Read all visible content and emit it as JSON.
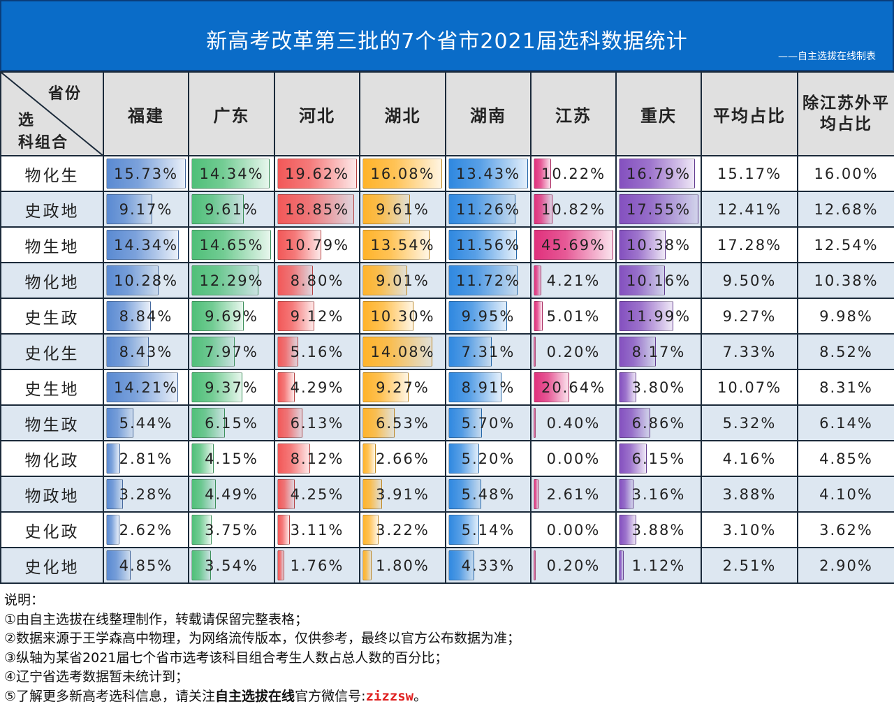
{
  "title": "新高考改革第三批的7个省市2021届选科数据统计",
  "subtitle": "——自主选拔在线制表",
  "corner": {
    "top": "省份",
    "mid": "选",
    "bottom": "科组合"
  },
  "chart_data": {
    "type": "table",
    "columns": [
      "福建",
      "广东",
      "河北",
      "湖北",
      "湖南",
      "江苏",
      "重庆",
      "平均占比",
      "除江苏外平均占比"
    ],
    "bar_colors": [
      "#5a8ad2",
      "#4fbf78",
      "#f25858",
      "#ffb32a",
      "#2f88e0",
      "#e0307c",
      "#8450bf"
    ],
    "rows": [
      {
        "label": "物化生",
        "values": [
          15.73,
          14.34,
          19.62,
          16.08,
          13.43,
          10.22,
          16.79,
          15.17,
          16.0
        ]
      },
      {
        "label": "史政地",
        "values": [
          9.17,
          9.61,
          18.85,
          9.61,
          11.26,
          10.82,
          17.55,
          12.41,
          12.68
        ]
      },
      {
        "label": "物生地",
        "values": [
          14.34,
          14.65,
          10.79,
          13.54,
          11.56,
          45.69,
          10.38,
          17.28,
          12.54
        ]
      },
      {
        "label": "物化地",
        "values": [
          10.28,
          12.29,
          8.8,
          9.01,
          11.72,
          4.21,
          10.16,
          9.5,
          10.38
        ]
      },
      {
        "label": "史生政",
        "values": [
          8.84,
          9.69,
          9.12,
          10.3,
          9.95,
          5.01,
          11.99,
          9.27,
          9.98
        ]
      },
      {
        "label": "史化生",
        "values": [
          8.43,
          7.97,
          5.16,
          14.08,
          7.31,
          0.2,
          8.17,
          7.33,
          8.52
        ]
      },
      {
        "label": "史生地",
        "values": [
          14.21,
          9.37,
          4.29,
          9.27,
          8.91,
          20.64,
          3.8,
          10.07,
          8.31
        ]
      },
      {
        "label": "物生政",
        "values": [
          5.44,
          6.15,
          6.13,
          6.53,
          5.7,
          0.4,
          6.86,
          5.32,
          6.14
        ]
      },
      {
        "label": "物化政",
        "values": [
          2.81,
          4.15,
          8.12,
          2.66,
          5.2,
          0.0,
          6.15,
          4.16,
          4.85
        ]
      },
      {
        "label": "物政地",
        "values": [
          3.28,
          4.49,
          4.25,
          3.91,
          5.48,
          2.61,
          3.16,
          3.88,
          4.1
        ]
      },
      {
        "label": "史化政",
        "values": [
          2.62,
          3.75,
          3.11,
          3.22,
          5.14,
          0.0,
          3.88,
          3.1,
          3.62
        ]
      },
      {
        "label": "史化地",
        "values": [
          4.85,
          3.54,
          1.76,
          1.8,
          4.33,
          0.2,
          1.12,
          2.51,
          2.9
        ]
      }
    ],
    "unit": "%"
  },
  "notes": {
    "heading": "说明：",
    "n1": "①由自主选拔在线整理制作，转载请保留完整表格；",
    "n2": "②数据来源于王学森高中物理，为网络流传版本，仅供参考，最终以官方公布数据为准；",
    "n3": "③纵轴为某省2021届七个省市选考该科目组合考生人数占总人数的百分比；",
    "n4": "④辽宁省选考数据暂未统计到；",
    "n5_pre": "⑤了解更多新高考选科信息，请关注",
    "n5_bold": "自主选拔在线",
    "n5_mid": "官方微信号:",
    "n5_wechat": "zizzsw",
    "n5_end": "。"
  }
}
